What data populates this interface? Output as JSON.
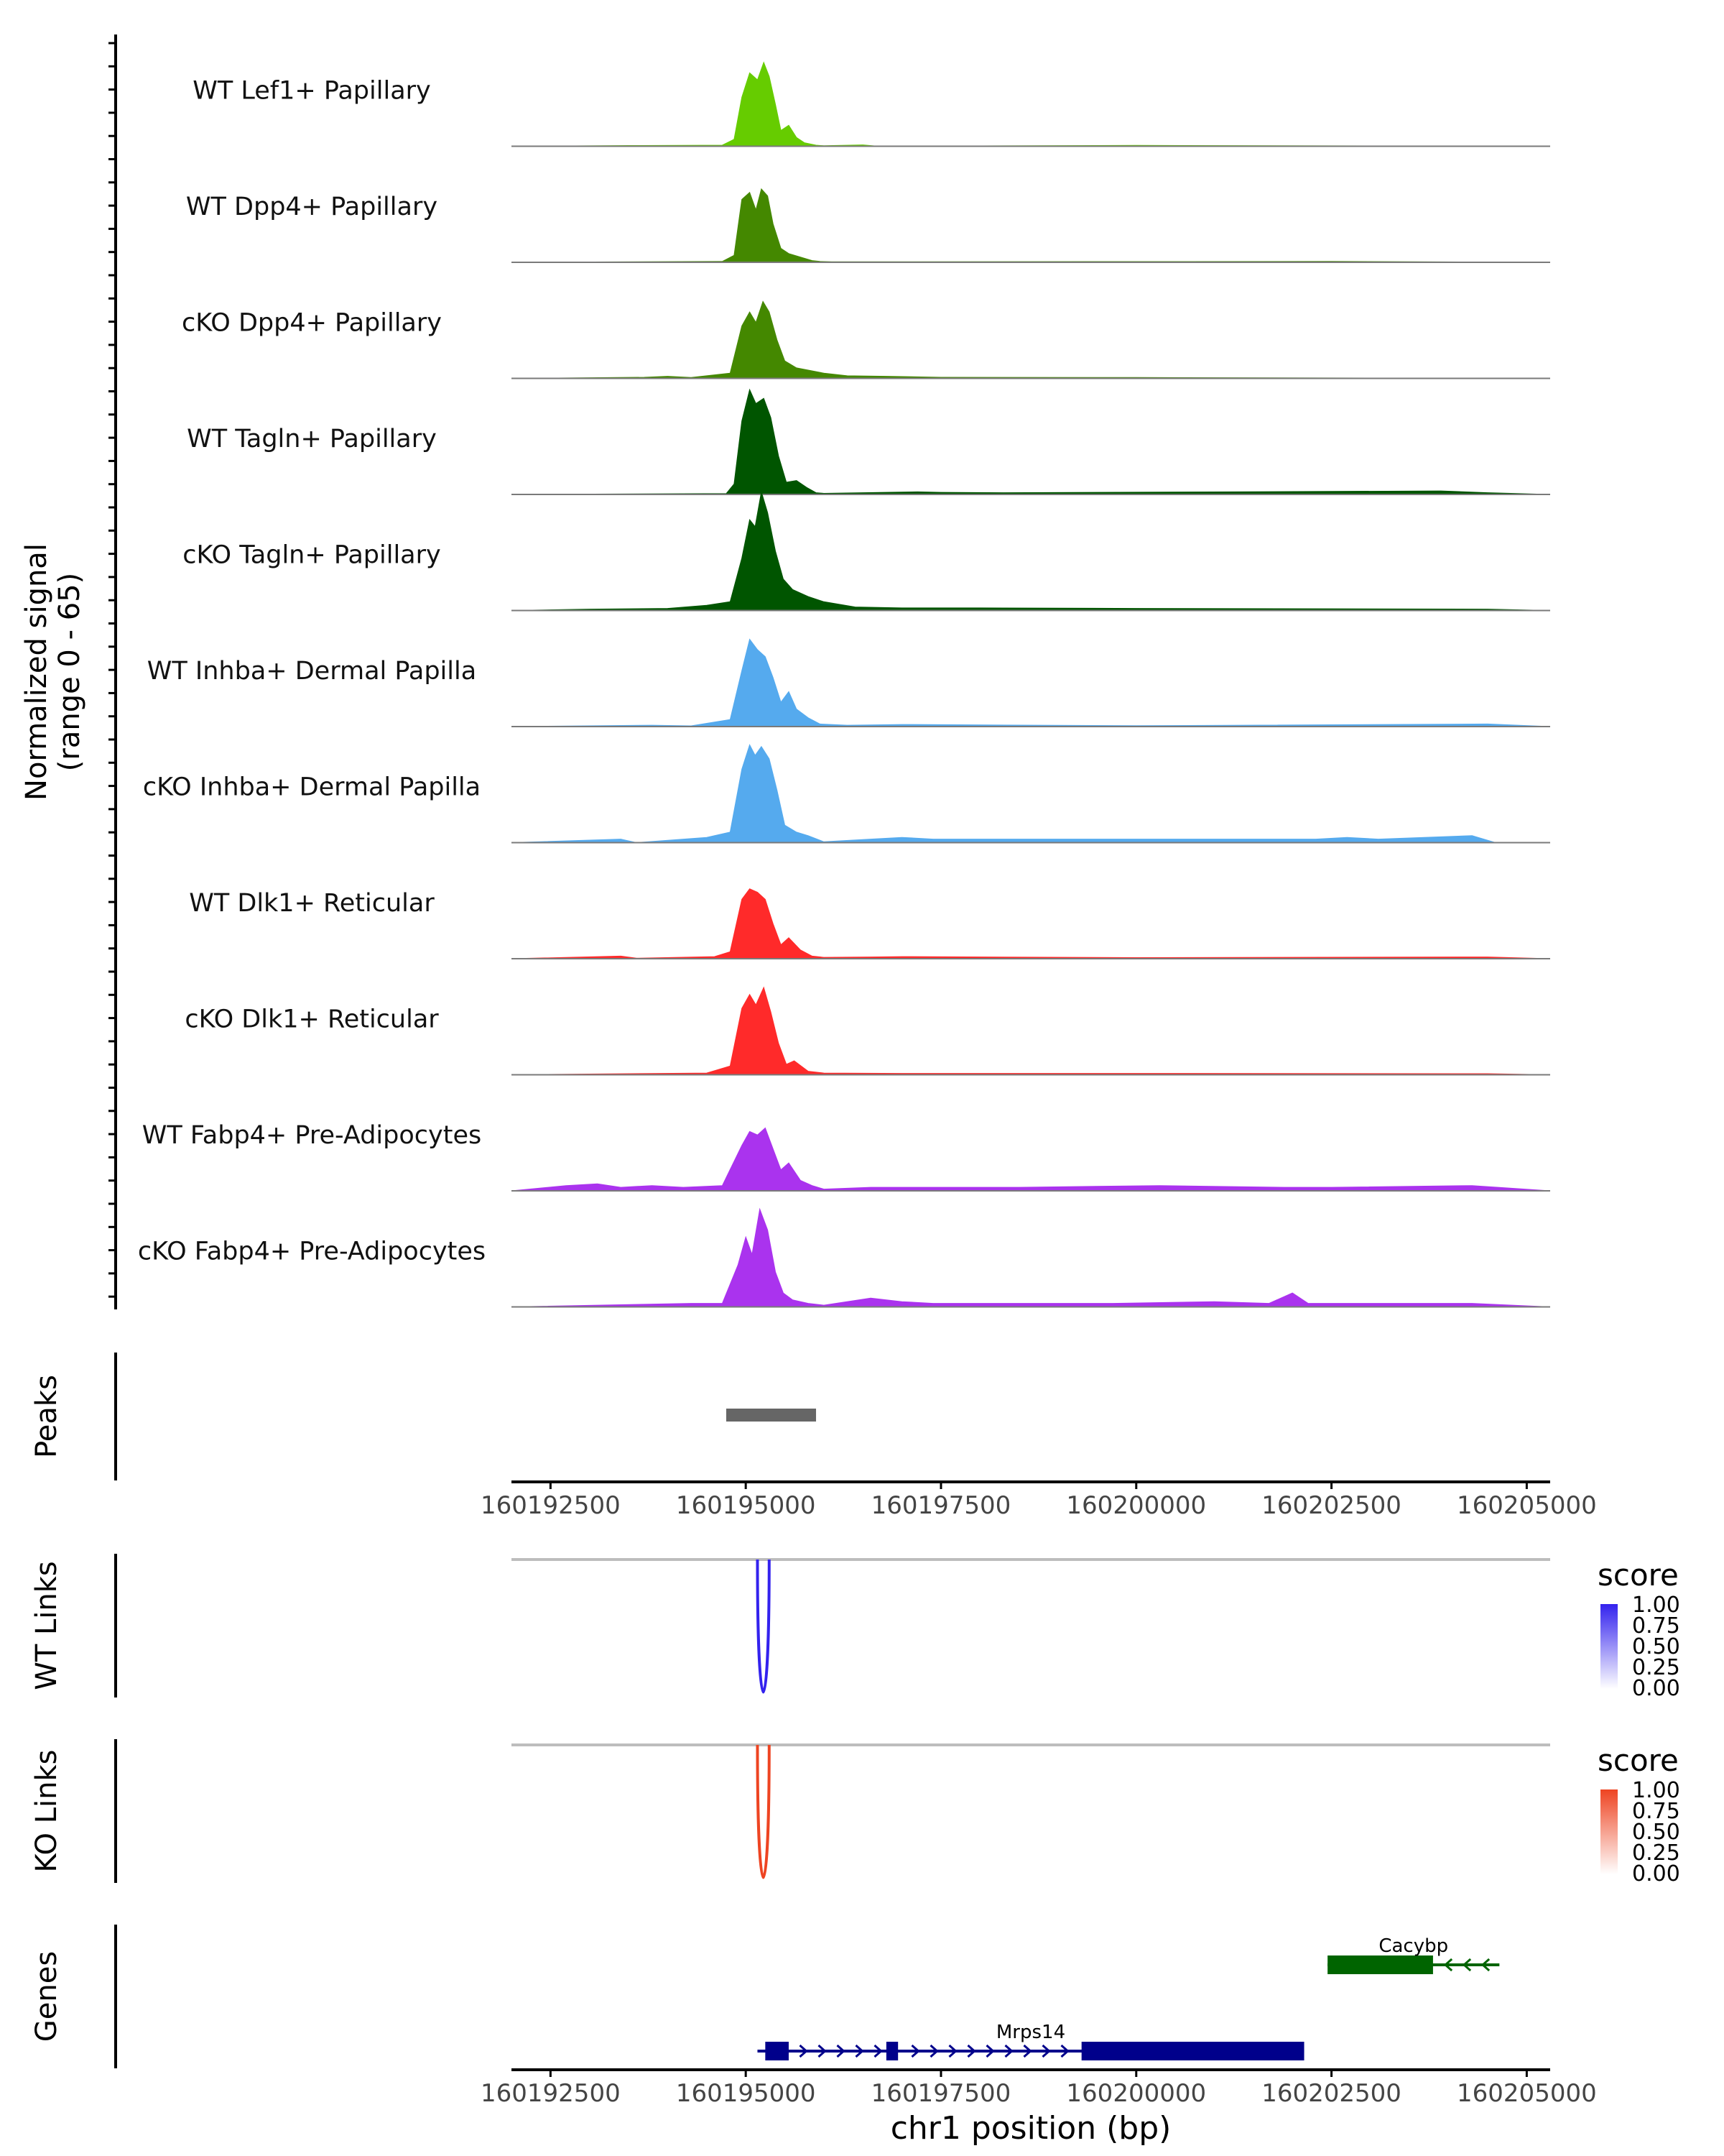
{
  "chart_data": {
    "type": "area",
    "subtype": "genome-coverage-track",
    "region": {
      "chrom": "chr1",
      "start": 160192000,
      "end": 160205300
    },
    "signal": {
      "ylabel_line1": "Normalized signal",
      "ylabel_line2": "(range 0 - 65)",
      "ylim": [
        0,
        65
      ],
      "series": [
        {
          "name": "WT Lef1+ Papillary",
          "color": "#66cc00",
          "points": [
            [
              160192000,
              0
            ],
            [
              160193500,
              0.4
            ],
            [
              160194700,
              0.6
            ],
            [
              160194850,
              4
            ],
            [
              160194950,
              28
            ],
            [
              160195050,
              42
            ],
            [
              160195150,
              38
            ],
            [
              160195230,
              48
            ],
            [
              160195300,
              40
            ],
            [
              160195380,
              24
            ],
            [
              160195450,
              9
            ],
            [
              160195550,
              12
            ],
            [
              160195650,
              5
            ],
            [
              160195750,
              2
            ],
            [
              160195900,
              0.6
            ],
            [
              160196000,
              0.3
            ],
            [
              160196500,
              0.8
            ],
            [
              160196700,
              0
            ],
            [
              160200000,
              0.5
            ],
            [
              160205300,
              0
            ]
          ]
        },
        {
          "name": "WT Dpp4+ Papillary",
          "color": "#448800",
          "points": [
            [
              160192000,
              0
            ],
            [
              160194700,
              0.5
            ],
            [
              160194850,
              4
            ],
            [
              160194950,
              36
            ],
            [
              160195050,
              40
            ],
            [
              160195130,
              30
            ],
            [
              160195200,
              42
            ],
            [
              160195280,
              38
            ],
            [
              160195350,
              22
            ],
            [
              160195450,
              8
            ],
            [
              160195550,
              5
            ],
            [
              160195700,
              3
            ],
            [
              160195850,
              1
            ],
            [
              160195950,
              0.5
            ],
            [
              160196100,
              0.3
            ],
            [
              160200000,
              0.4
            ],
            [
              160202500,
              0.5
            ],
            [
              160205300,
              0
            ]
          ]
        },
        {
          "name": "cKO Dpp4+ Papillary",
          "color": "#448800",
          "points": [
            [
              160192000,
              0
            ],
            [
              160193700,
              0.6
            ],
            [
              160194000,
              1.2
            ],
            [
              160194300,
              0.5
            ],
            [
              160194800,
              3
            ],
            [
              160194950,
              30
            ],
            [
              160195050,
              38
            ],
            [
              160195130,
              32
            ],
            [
              160195220,
              44
            ],
            [
              160195300,
              38
            ],
            [
              160195400,
              22
            ],
            [
              160195500,
              10
            ],
            [
              160195650,
              6
            ],
            [
              160196000,
              3
            ],
            [
              160196300,
              1.5
            ],
            [
              160196800,
              1.2
            ],
            [
              160197500,
              0.6
            ],
            [
              160200000,
              0.5
            ],
            [
              160205300,
              0
            ]
          ]
        },
        {
          "name": "WT Tagln+ Papillary",
          "color": "#005500",
          "points": [
            [
              160192000,
              0
            ],
            [
              160194750,
              0.5
            ],
            [
              160194850,
              6
            ],
            [
              160194950,
              42
            ],
            [
              160195050,
              60
            ],
            [
              160195130,
              52
            ],
            [
              160195230,
              55
            ],
            [
              160195320,
              44
            ],
            [
              160195420,
              22
            ],
            [
              160195520,
              7
            ],
            [
              160195650,
              8
            ],
            [
              160195780,
              4
            ],
            [
              160195900,
              1
            ],
            [
              160196000,
              0.6
            ],
            [
              160197200,
              1.5
            ],
            [
              160197500,
              1.2
            ],
            [
              160198300,
              1
            ],
            [
              160201300,
              1.5
            ],
            [
              160203900,
              2
            ],
            [
              160204500,
              1
            ],
            [
              160205300,
              0
            ]
          ]
        },
        {
          "name": "cKO Tagln+ Papillary",
          "color": "#005500",
          "points": [
            [
              160192000,
              0
            ],
            [
              160193000,
              0.8
            ],
            [
              160194000,
              1.2
            ],
            [
              160194500,
              3
            ],
            [
              160194800,
              5
            ],
            [
              160194950,
              30
            ],
            [
              160195050,
              52
            ],
            [
              160195120,
              48
            ],
            [
              160195200,
              68
            ],
            [
              160195280,
              56
            ],
            [
              160195380,
              34
            ],
            [
              160195480,
              18
            ],
            [
              160195600,
              12
            ],
            [
              160195800,
              8
            ],
            [
              160196000,
              5
            ],
            [
              160196400,
              2
            ],
            [
              160197000,
              1.5
            ],
            [
              160198000,
              1.5
            ],
            [
              160200000,
              1.2
            ],
            [
              160202500,
              1
            ],
            [
              160204500,
              0.8
            ],
            [
              160205300,
              0
            ]
          ]
        },
        {
          "name": "WT Inhba+ Dermal Papilla",
          "color": "#55aaee",
          "points": [
            [
              160192000,
              0
            ],
            [
              160193800,
              0.8
            ],
            [
              160194300,
              0.4
            ],
            [
              160194800,
              4
            ],
            [
              160194950,
              32
            ],
            [
              160195050,
              50
            ],
            [
              160195150,
              44
            ],
            [
              160195250,
              40
            ],
            [
              160195350,
              28
            ],
            [
              160195450,
              14
            ],
            [
              160195550,
              20
            ],
            [
              160195650,
              10
            ],
            [
              160195800,
              5
            ],
            [
              160195950,
              1.5
            ],
            [
              160196300,
              0.8
            ],
            [
              160197000,
              1.2
            ],
            [
              160200000,
              0.5
            ],
            [
              160204500,
              1.5
            ],
            [
              160205300,
              0
            ]
          ]
        },
        {
          "name": "cKO Inhba+ Dermal Papilla",
          "color": "#55aaee",
          "points": [
            [
              160192000,
              0
            ],
            [
              160193400,
              2
            ],
            [
              160193600,
              0
            ],
            [
              160194500,
              3
            ],
            [
              160194800,
              6
            ],
            [
              160194950,
              42
            ],
            [
              160195050,
              56
            ],
            [
              160195120,
              50
            ],
            [
              160195200,
              55
            ],
            [
              160195300,
              48
            ],
            [
              160195400,
              30
            ],
            [
              160195500,
              10
            ],
            [
              160195650,
              6
            ],
            [
              160195800,
              4
            ],
            [
              160196000,
              0.5
            ],
            [
              160196600,
              2
            ],
            [
              160197000,
              3
            ],
            [
              160197400,
              2
            ],
            [
              160199300,
              2
            ],
            [
              160202300,
              2
            ],
            [
              160202700,
              3
            ],
            [
              160203100,
              2
            ],
            [
              160204300,
              4
            ],
            [
              160204600,
              0
            ]
          ]
        },
        {
          "name": "WT Dlk1+ Reticular",
          "color": "#ff2a2a",
          "points": [
            [
              160192000,
              0
            ],
            [
              160193400,
              1.5
            ],
            [
              160193600,
              0.3
            ],
            [
              160194600,
              1.2
            ],
            [
              160194800,
              4
            ],
            [
              160194950,
              34
            ],
            [
              160195050,
              40
            ],
            [
              160195150,
              38
            ],
            [
              160195250,
              34
            ],
            [
              160195350,
              20
            ],
            [
              160195450,
              8
            ],
            [
              160195550,
              12
            ],
            [
              160195700,
              5
            ],
            [
              160195850,
              1.5
            ],
            [
              160196000,
              0.8
            ],
            [
              160196600,
              1
            ],
            [
              160197000,
              1.2
            ],
            [
              160200000,
              0.6
            ],
            [
              160204500,
              1
            ],
            [
              160205300,
              0
            ]
          ]
        },
        {
          "name": "cKO Dlk1+ Reticular",
          "color": "#ff2a2a",
          "points": [
            [
              160192000,
              0
            ],
            [
              160194500,
              1
            ],
            [
              160194800,
              5
            ],
            [
              160194950,
              38
            ],
            [
              160195050,
              46
            ],
            [
              160195130,
              40
            ],
            [
              160195230,
              50
            ],
            [
              160195320,
              36
            ],
            [
              160195420,
              18
            ],
            [
              160195520,
              6
            ],
            [
              160195620,
              8
            ],
            [
              160195800,
              2
            ],
            [
              160196000,
              1
            ],
            [
              160197000,
              0.8
            ],
            [
              160200000,
              0.8
            ],
            [
              160204500,
              0.6
            ],
            [
              160205300,
              0
            ]
          ]
        },
        {
          "name": "WT Fabp4+ Pre-Adipocytes",
          "color": "#aa33ee",
          "points": [
            [
              160192000,
              0
            ],
            [
              160192700,
              3
            ],
            [
              160193100,
              4
            ],
            [
              160193400,
              2
            ],
            [
              160193800,
              3
            ],
            [
              160194200,
              2
            ],
            [
              160194700,
              3
            ],
            [
              160194950,
              26
            ],
            [
              160195050,
              34
            ],
            [
              160195150,
              32
            ],
            [
              160195250,
              36
            ],
            [
              160195350,
              24
            ],
            [
              160195450,
              12
            ],
            [
              160195550,
              16
            ],
            [
              160195700,
              6
            ],
            [
              160195850,
              3
            ],
            [
              160196000,
              1
            ],
            [
              160196600,
              2
            ],
            [
              160198500,
              2
            ],
            [
              160200300,
              3
            ],
            [
              160201900,
              2
            ],
            [
              160202500,
              2
            ],
            [
              160204300,
              3
            ],
            [
              160205300,
              0
            ]
          ]
        },
        {
          "name": "cKO Fabp4+ Pre-Adipocytes",
          "color": "#aa33ee",
          "points": [
            [
              160192000,
              0
            ],
            [
              160193700,
              1.5
            ],
            [
              160194300,
              2
            ],
            [
              160194700,
              2
            ],
            [
              160194900,
              24
            ],
            [
              160195000,
              40
            ],
            [
              160195080,
              30
            ],
            [
              160195180,
              56
            ],
            [
              160195280,
              44
            ],
            [
              160195380,
              20
            ],
            [
              160195480,
              8
            ],
            [
              160195600,
              4
            ],
            [
              160195800,
              2
            ],
            [
              160196000,
              1
            ],
            [
              160196600,
              5
            ],
            [
              160197000,
              3
            ],
            [
              160197400,
              2
            ],
            [
              160199700,
              2
            ],
            [
              160201000,
              3
            ],
            [
              160201700,
              2
            ],
            [
              160202000,
              8
            ],
            [
              160202200,
              2
            ],
            [
              160203200,
              2
            ],
            [
              160204300,
              2
            ],
            [
              160205300,
              0
            ]
          ]
        }
      ]
    },
    "peaks": {
      "label": "Peaks",
      "intervals": [
        [
          160194750,
          160195900
        ]
      ],
      "color": "#666666"
    },
    "links": [
      {
        "label": "WT Links",
        "start": 160195150,
        "end": 160195300,
        "score": 1.0,
        "color": "#3322ee"
      },
      {
        "label": "KO Links",
        "start": 160195150,
        "end": 160195300,
        "score": 1.0,
        "color": "#ee4422"
      }
    ],
    "legends": [
      {
        "title": "score",
        "ticks": [
          "1.00",
          "0.75",
          "0.50",
          "0.25",
          "0.00"
        ],
        "color": "#3322ee"
      },
      {
        "title": "score",
        "ticks": [
          "1.00",
          "0.75",
          "0.50",
          "0.25",
          "0.00"
        ],
        "color": "#ee4422"
      }
    ],
    "genes": {
      "label": "Genes",
      "items": [
        {
          "name": "Cacybp",
          "strand": "-",
          "color": "#006400",
          "start": 160202450,
          "end": 160204650,
          "exons": [
            [
              160202450,
              160203800
            ]
          ]
        },
        {
          "name": "Mrps14",
          "strand": "+",
          "color": "#00008b",
          "start": 160195150,
          "end": 160202150,
          "exons": [
            [
              160195250,
              160195550
            ],
            [
              160196800,
              160196950
            ],
            [
              160199300,
              160202150
            ]
          ]
        }
      ]
    },
    "x_axis": {
      "ticks": [
        160192500,
        160195000,
        160197500,
        160200000,
        160202500,
        160205000
      ],
      "tick_labels": [
        "160192500",
        "160195000",
        "160197500",
        "160200000",
        "160202500",
        "160205000"
      ],
      "xlabel": "chr1 position (bp)"
    }
  }
}
